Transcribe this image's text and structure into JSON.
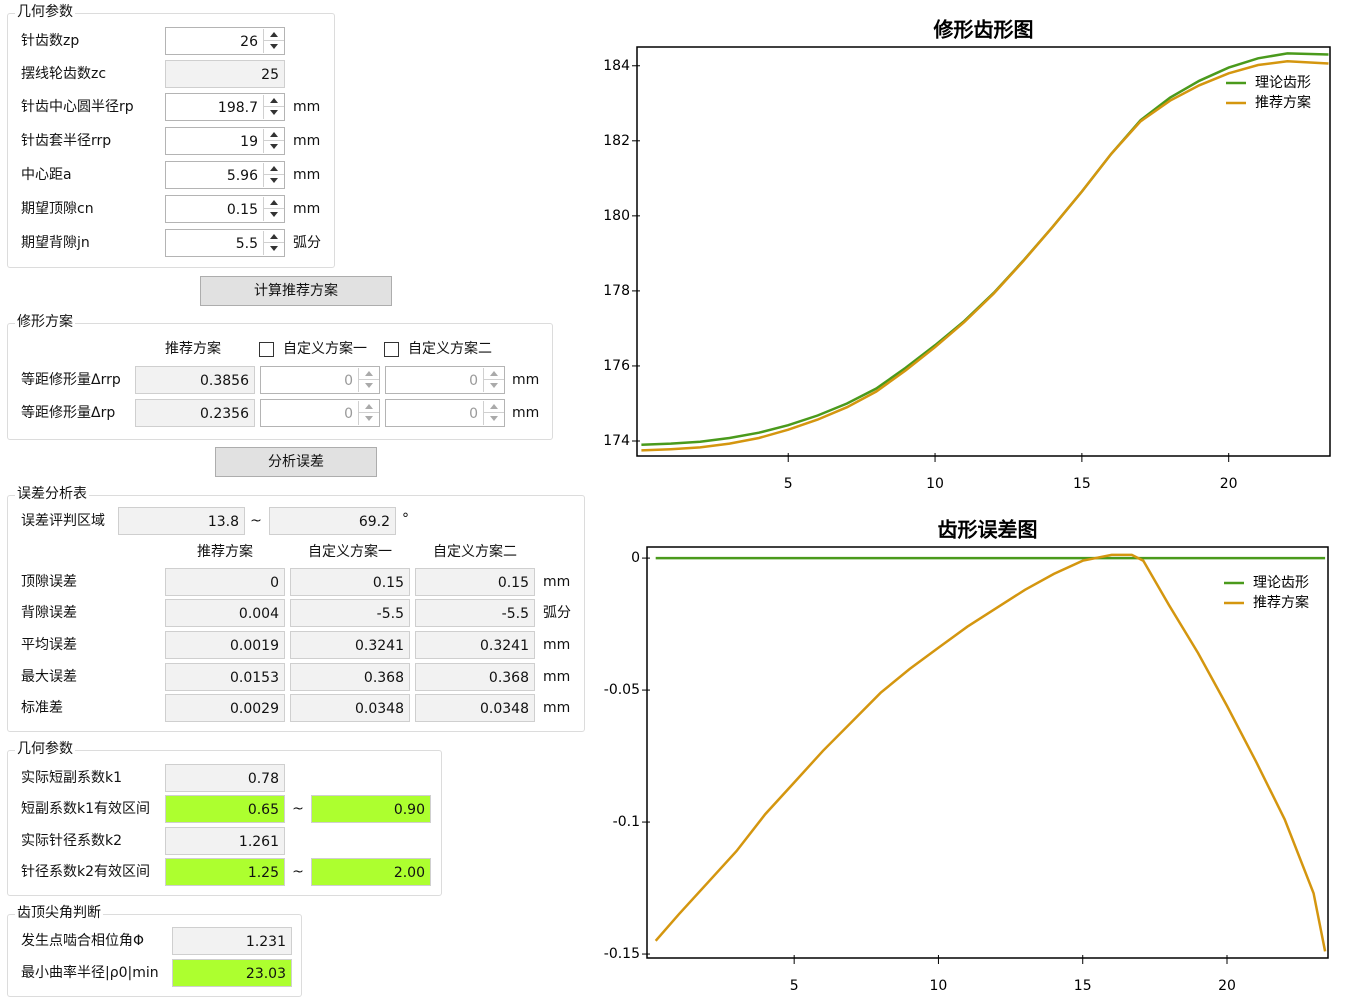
{
  "geometry": {
    "title": "几何参数",
    "rows": [
      {
        "label": "针齿数zp",
        "value": "26"
      },
      {
        "label": "摆线轮齿数zc",
        "value": "25"
      },
      {
        "label": "针齿中心圆半径rp",
        "value": "198.7",
        "unit": "mm"
      },
      {
        "label": "针齿套半径rrp",
        "value": "19",
        "unit": "mm"
      },
      {
        "label": "中心距a",
        "value": "5.96",
        "unit": "mm"
      },
      {
        "label": "期望顶隙cn",
        "value": "0.15",
        "unit": "mm"
      },
      {
        "label": "期望背隙jn",
        "value": "5.5",
        "unit": "弧分"
      }
    ]
  },
  "calc_button": "计算推荐方案",
  "modification": {
    "title": "修形方案",
    "headers": [
      "推荐方案",
      "自定义方案一",
      "自定义方案二"
    ],
    "rows": [
      {
        "label": "等距修形量Δrrp",
        "values": [
          "0.3856",
          "0",
          "0"
        ],
        "unit": "mm"
      },
      {
        "label": "等距修形量Δrp",
        "values": [
          "0.2356",
          "0",
          "0"
        ],
        "unit": "mm"
      }
    ]
  },
  "analyze_button": "分析误差",
  "error_analysis": {
    "title": "误差分析表",
    "range": {
      "label": "误差评判区域",
      "from": "13.8",
      "separator": "~",
      "to": "69.2",
      "unit": "°"
    },
    "headers": [
      "推荐方案",
      "自定义方案一",
      "自定义方案二"
    ],
    "rows": [
      {
        "label": "顶隙误差",
        "values": [
          "0",
          "0.15",
          "0.15"
        ],
        "unit": "mm"
      },
      {
        "label": "背隙误差",
        "values": [
          "0.004",
          "-5.5",
          "-5.5"
        ],
        "unit": "弧分"
      },
      {
        "label": "平均误差",
        "values": [
          "0.0019",
          "0.3241",
          "0.3241"
        ],
        "unit": "mm"
      },
      {
        "label": "最大误差",
        "values": [
          "0.0153",
          "0.368",
          "0.368"
        ],
        "unit": "mm"
      },
      {
        "label": "标准差",
        "values": [
          "0.0029",
          "0.0348",
          "0.0348"
        ],
        "unit": "mm"
      }
    ]
  },
  "geometry_check": {
    "title": "几何参数",
    "rows": [
      {
        "label": "实际短副系数k1",
        "value": "0.78"
      },
      {
        "label": "短副系数k1有效区间",
        "from": "0.65",
        "separator": "~",
        "to": "0.90"
      },
      {
        "label": "实际针径系数k2",
        "value": "1.261"
      },
      {
        "label": "针径系数k2有效区间",
        "from": "1.25",
        "separator": "~",
        "to": "2.00"
      }
    ]
  },
  "tip_check": {
    "title": "齿顶尖角判断",
    "rows": [
      {
        "label": "发生点啮合相位角Φ",
        "value": "1.231"
      },
      {
        "label": "最小曲率半径|ρ0|min",
        "value": "23.03"
      }
    ]
  },
  "chart_data": [
    {
      "type": "line",
      "title": "修形齿形图",
      "xlim": [
        -0.15,
        23.45
      ],
      "xticks": [
        5,
        10,
        15,
        20
      ],
      "ylim": [
        173.6,
        184.5
      ],
      "yticks": [
        174,
        176,
        178,
        180,
        182,
        184
      ],
      "legend": "upper right",
      "series": [
        {
          "name": "理论齿形",
          "color": "#4a9a1c",
          "x": [
            0,
            1,
            2,
            3,
            4,
            5,
            6,
            7,
            8,
            9,
            10,
            11,
            12,
            13,
            14,
            15,
            16,
            17,
            18,
            19,
            20,
            21,
            22,
            23.4
          ],
          "values": [
            173.9,
            173.93,
            173.98,
            174.08,
            174.22,
            174.42,
            174.68,
            175.0,
            175.4,
            175.95,
            176.55,
            177.2,
            177.95,
            178.8,
            179.7,
            180.65,
            181.65,
            182.55,
            183.15,
            183.6,
            183.95,
            184.2,
            184.33,
            184.3
          ]
        },
        {
          "name": "推荐方案",
          "color": "#d4960f",
          "x": [
            0,
            1,
            2,
            3,
            4,
            5,
            6,
            7,
            8,
            9,
            10,
            11,
            12,
            13,
            14,
            15,
            16,
            17,
            18,
            19,
            20,
            21,
            22,
            23.4
          ],
          "values": [
            173.75,
            173.78,
            173.83,
            173.93,
            174.08,
            174.3,
            174.57,
            174.9,
            175.32,
            175.88,
            176.5,
            177.17,
            177.93,
            178.79,
            179.7,
            180.65,
            181.65,
            182.52,
            183.07,
            183.48,
            183.8,
            184.02,
            184.12,
            184.06
          ]
        }
      ]
    },
    {
      "type": "line",
      "title": "齿形误差图",
      "xlim": [
        -0.1,
        23.5
      ],
      "xticks": [
        5,
        10,
        15,
        20
      ],
      "ylim": [
        -0.1515,
        0.0042
      ],
      "yticks": [
        0,
        -0.05,
        -0.1,
        -0.15
      ],
      "legend": "upper right",
      "series": [
        {
          "name": "理论齿形",
          "color": "#4a9a1c",
          "x": [
            0.2,
            23.4
          ],
          "values": [
            0,
            0
          ]
        },
        {
          "name": "推荐方案",
          "color": "#d4960f",
          "x": [
            0.2,
            1,
            2,
            3,
            4,
            5,
            6,
            7,
            8,
            9,
            10,
            11,
            12,
            13,
            14,
            15,
            16,
            16.7,
            17.1,
            18,
            19,
            20,
            21,
            22,
            23,
            23.4
          ],
          "values": [
            -0.145,
            -0.135,
            -0.123,
            -0.111,
            -0.097,
            -0.085,
            -0.073,
            -0.062,
            -0.051,
            -0.042,
            -0.034,
            -0.026,
            -0.019,
            -0.012,
            -0.006,
            -0.001,
            0.0012,
            0.0012,
            -0.001,
            -0.018,
            -0.036,
            -0.056,
            -0.077,
            -0.099,
            -0.127,
            -0.149
          ]
        }
      ]
    }
  ]
}
